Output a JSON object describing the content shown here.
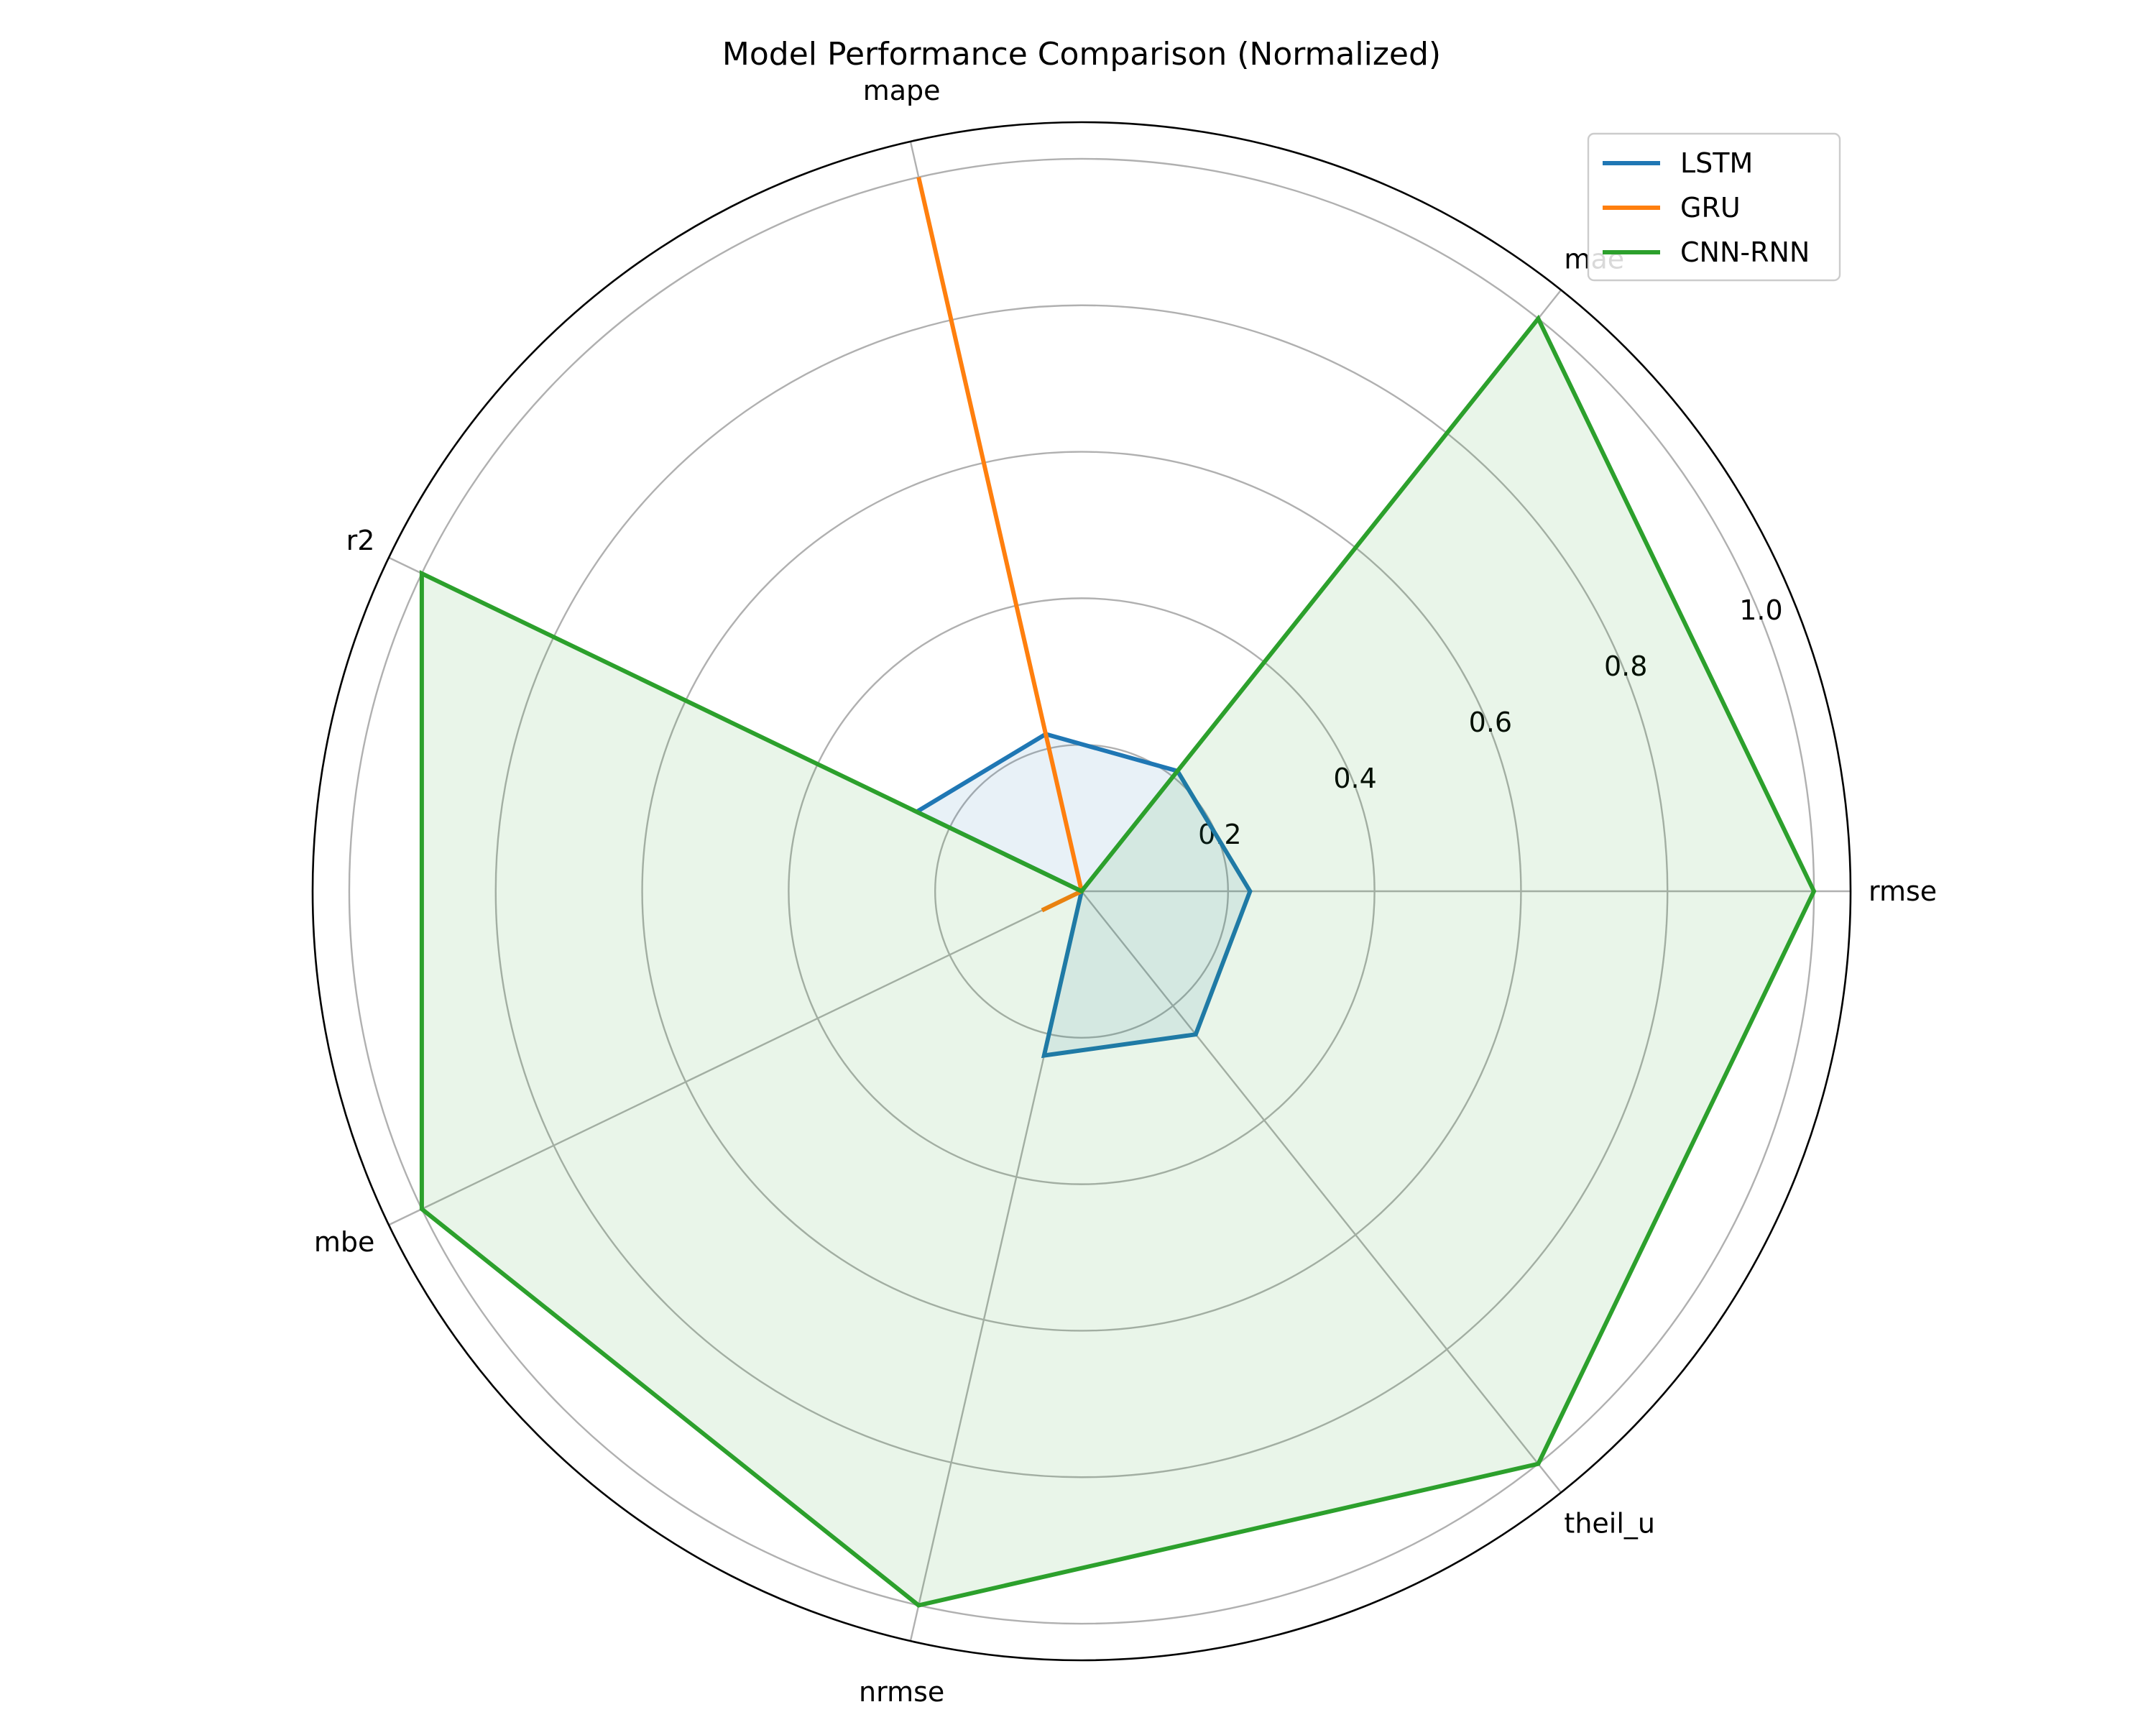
{
  "chart_data": {
    "type": "radar",
    "title": "Model Performance Comparison (Normalized)",
    "axes": [
      "rmse",
      "mae",
      "mape",
      "r2",
      "mbe",
      "nrmse",
      "theil_u"
    ],
    "rlim": [
      0,
      1.05
    ],
    "rticks": [
      0.2,
      0.4,
      0.6,
      0.8,
      1.0
    ],
    "rtick_labels": [
      "0.2",
      "0.4",
      "0.6",
      "0.8",
      "1.0"
    ],
    "grid": true,
    "legend_position": "top-right",
    "series": [
      {
        "name": "LSTM",
        "color": "#1f77b4",
        "values": [
          0.23,
          0.21,
          0.22,
          0.25,
          0.0,
          0.23,
          0.25
        ]
      },
      {
        "name": "GRU",
        "color": "#ff7f0e",
        "values": [
          0.0,
          0.0,
          1.0,
          0.0,
          0.06,
          0.0,
          0.0
        ]
      },
      {
        "name": "CNN-RNN",
        "color": "#2ca02c",
        "values": [
          1.0,
          1.0,
          0.0,
          1.0,
          1.0,
          1.0,
          1.0
        ]
      }
    ]
  }
}
